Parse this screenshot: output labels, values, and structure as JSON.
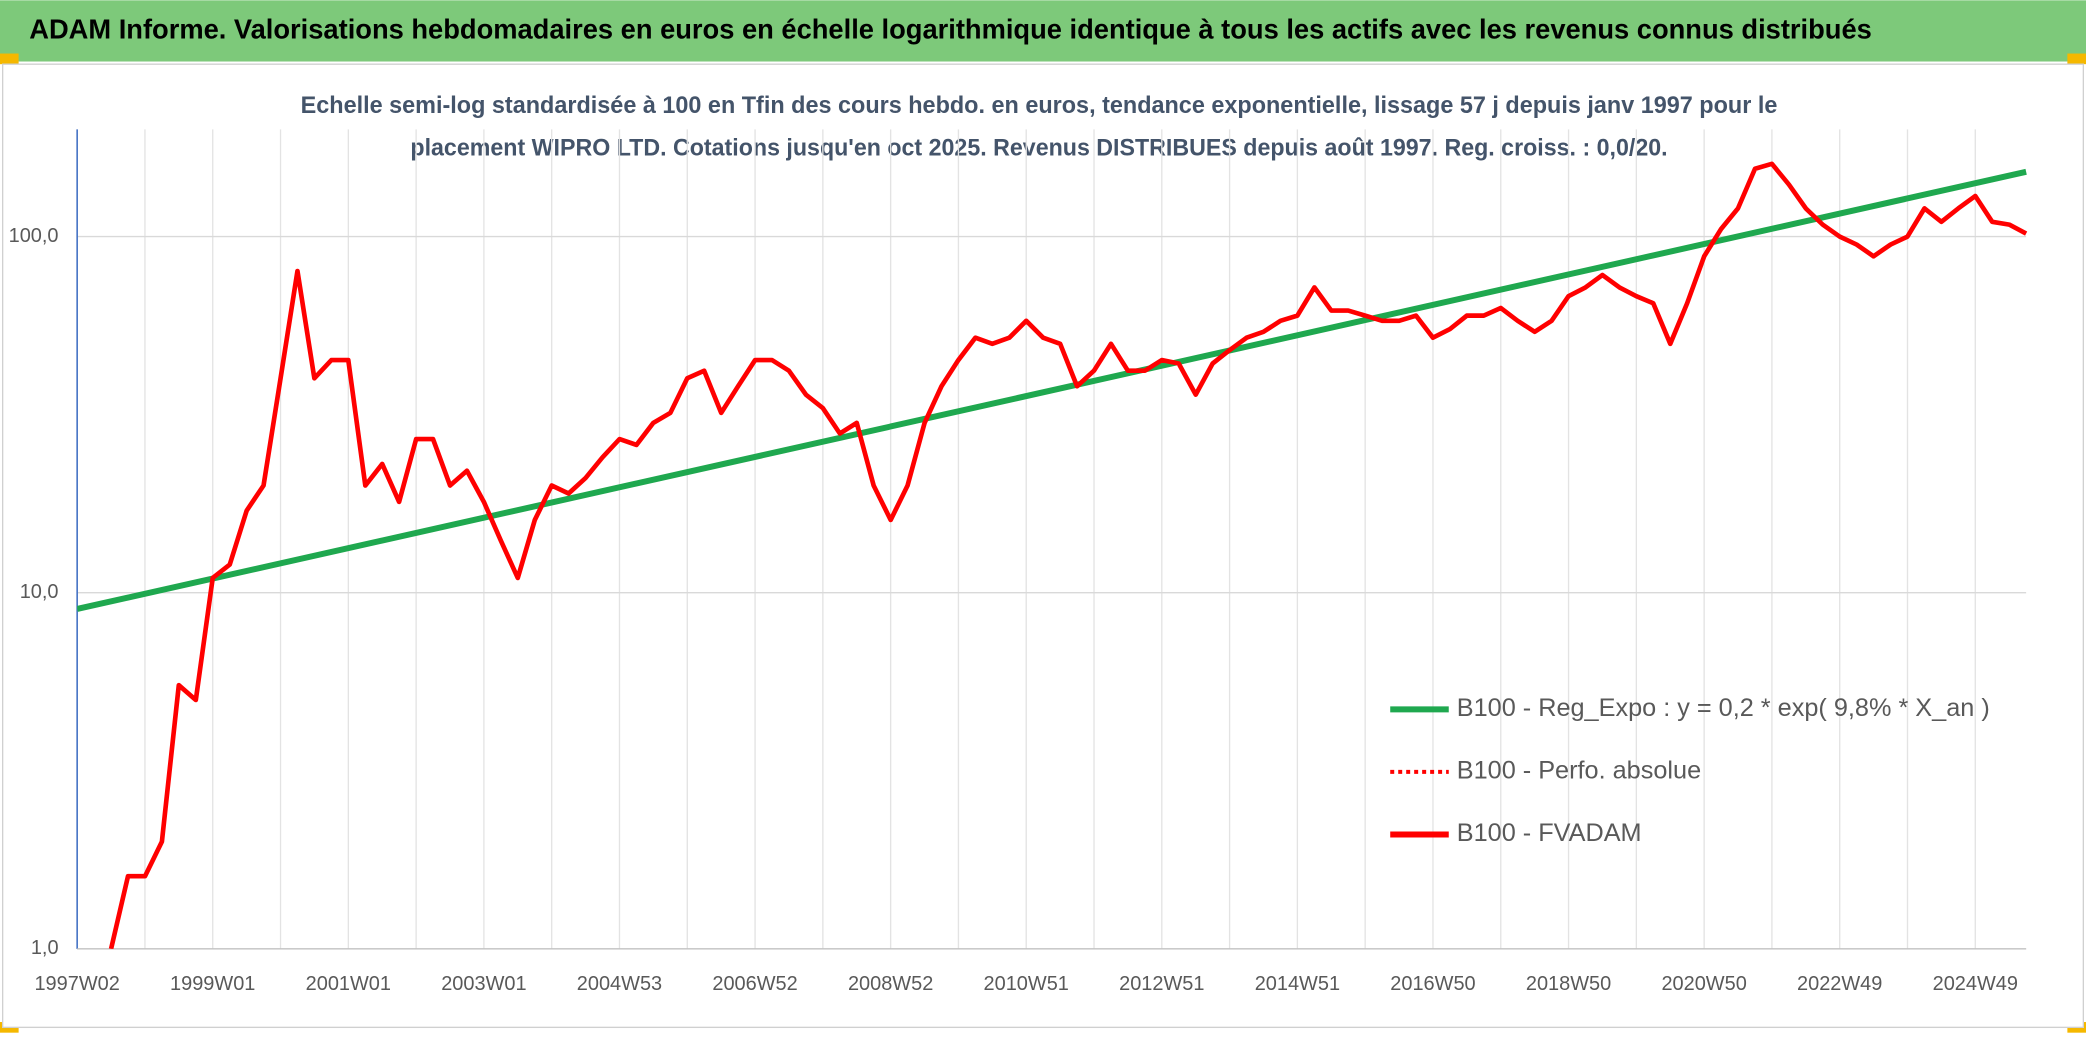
{
  "chart_data": {
    "type": "line",
    "title": "ADAM Informe. Valorisations hebdomadaires en euros en échelle logarithmique identique à tous les actifs avec les revenus connus distribués",
    "subtitle": [
      "Echelle semi-log standardisée à 100 en Tfin des cours hebdo. en euros, tendance exponentielle, lissage 57 j depuis janv 1997 pour le",
      "placement WIPRO LTD. Cotations jusqu'en oct 2025. Revenus DISTRIBUES depuis août 1997. Reg. croiss. : 0,0/20."
    ],
    "log_scale": true,
    "grid": true,
    "legend": "right",
    "ylim": [
      1,
      200
    ],
    "yticks": [
      {
        "value": 1,
        "label": "1,0"
      },
      {
        "value": 10,
        "label": "10,0"
      },
      {
        "value": 100,
        "label": "100,0"
      }
    ],
    "categories": [
      "1997W02",
      null,
      null,
      null,
      null,
      null,
      null,
      null,
      "1999W01",
      null,
      null,
      null,
      null,
      null,
      null,
      null,
      "2001W01",
      null,
      null,
      null,
      null,
      null,
      null,
      null,
      "2003W01",
      null,
      null,
      null,
      null,
      null,
      null,
      null,
      "2004W53",
      null,
      null,
      null,
      null,
      null,
      null,
      null,
      "2006W52",
      null,
      null,
      null,
      null,
      null,
      null,
      null,
      "2008W52",
      null,
      null,
      null,
      null,
      null,
      null,
      null,
      "2010W51",
      null,
      null,
      null,
      null,
      null,
      null,
      null,
      "2012W51",
      null,
      null,
      null,
      null,
      null,
      null,
      null,
      "2014W51",
      null,
      null,
      null,
      null,
      null,
      null,
      null,
      "2016W50",
      null,
      null,
      null,
      null,
      null,
      null,
      null,
      "2018W50",
      null,
      null,
      null,
      null,
      null,
      null,
      null,
      "2020W50",
      null,
      null,
      null,
      null,
      null,
      null,
      null,
      "2022W49",
      null,
      null,
      null,
      null,
      null,
      null,
      null,
      "2024W49",
      null,
      null,
      null
    ],
    "series": [
      {
        "name": "B100 - Reg_Expo : y = 0,2 * exp( 9,8% *  X_an )",
        "color": "#1fa84f",
        "x": [
          0,
          115
        ],
        "values": [
          9,
          152
        ]
      },
      {
        "name": "B100 - Perfo. absolue",
        "color": "#ff0000",
        "dash": "dotted"
      },
      {
        "name": "B100 - FVADAM",
        "color": "#ff0000",
        "values": [
          null,
          null,
          1.0,
          1.6,
          1.6,
          2.0,
          5.5,
          5.0,
          11,
          12,
          17,
          20,
          40,
          80,
          40,
          45,
          45,
          20,
          23,
          18,
          27,
          27,
          20,
          22,
          18,
          14,
          11,
          16,
          20,
          19,
          21,
          24,
          27,
          26,
          30,
          32,
          40,
          42,
          32,
          38,
          45,
          45,
          42,
          36,
          33,
          28,
          30,
          20,
          16,
          20,
          30,
          38,
          45,
          52,
          50,
          52,
          58,
          52,
          50,
          38,
          42,
          50,
          42,
          42,
          45,
          44,
          36,
          44,
          48,
          52,
          54,
          58,
          60,
          72,
          62,
          62,
          60,
          58,
          58,
          60,
          52,
          55,
          60,
          60,
          63,
          58,
          54,
          58,
          68,
          72,
          78,
          72,
          68,
          65,
          50,
          65,
          88,
          105,
          120,
          155,
          160,
          140,
          120,
          108,
          100,
          95,
          88,
          95,
          100,
          120,
          110,
          120,
          130,
          110,
          108,
          102
        ]
      }
    ]
  }
}
